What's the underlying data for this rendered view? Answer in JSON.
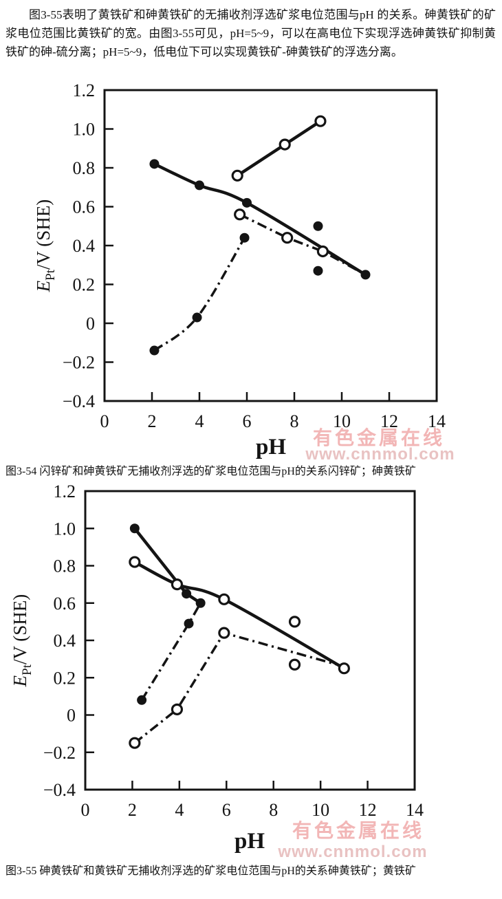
{
  "page": {
    "intro_paragraph": "图3-55表明了黄铁矿和砷黄铁矿的无捕收剂浮选矿浆电位范围与pH 的关系。砷黄铁矿的矿浆电位范围比黄铁矿的宽。由图3-55可见，pH=5~9，可以在高电位下实现浮选砷黄铁矿抑制黄铁矿的砷-硫分离；pH=5~9，低电位下可以实现黄铁矿-砷黄铁矿的浮选分离。"
  },
  "watermark": {
    "line1": "有色金属在线",
    "line2": "www.cnnmol.com",
    "color_line1": "#f2b6b6",
    "color_line2": "#e9c2c2"
  },
  "colors": {
    "ink": "#141414",
    "background": "#ffffff"
  },
  "chart_data": [
    {
      "id": "fig3-54",
      "type": "line",
      "caption": "图3-54 闪锌矿和砷黄铁矿无捕收剂浮选的矿浆电位范围与pH的关系闪锌矿；砷黄铁矿",
      "xlabel": "pH",
      "ylabel_var": "E",
      "ylabel_sub": "Pt",
      "ylabel_rest": "/V (SHE)",
      "xlim": [
        0,
        14
      ],
      "ylim": [
        -0.4,
        1.2
      ],
      "grid": false,
      "legend": "none",
      "x_ticks": [
        {
          "v": 0,
          "label": "0"
        },
        {
          "v": 2,
          "label": "2"
        },
        {
          "v": 4,
          "label": "4"
        },
        {
          "v": 6,
          "label": "6"
        },
        {
          "v": 8,
          "label": "8"
        },
        {
          "v": 10,
          "label": "10"
        },
        {
          "v": 12,
          "label": "12"
        },
        {
          "v": 14,
          "label": "14"
        }
      ],
      "y_ticks": [
        {
          "v": 1.2,
          "label": "1.2"
        },
        {
          "v": 1.0,
          "label": "1.0"
        },
        {
          "v": 0.8,
          "label": "0.8"
        },
        {
          "v": 0.6,
          "label": "0.6"
        },
        {
          "v": 0.4,
          "label": "0.4"
        },
        {
          "v": 0.2,
          "label": "0.2"
        },
        {
          "v": 0,
          "label": "0"
        },
        {
          "v": -0.2,
          "label": "−0.2"
        },
        {
          "v": -0.4,
          "label": "−0.4"
        }
      ],
      "series": [
        {
          "name": "砷黄铁矿上限(实心圆·实线)",
          "marker": "filled",
          "line": "solid",
          "smooth": true,
          "points": [
            [
              2.1,
              0.82
            ],
            [
              4.0,
              0.71
            ],
            [
              6.0,
              0.62
            ],
            [
              11.0,
              0.25
            ]
          ]
        },
        {
          "name": "闪锌矿上限(空心圆·实线)",
          "marker": "open",
          "line": "solid",
          "smooth": false,
          "points": [
            [
              5.6,
              0.76
            ],
            [
              7.6,
              0.92
            ],
            [
              9.1,
              1.04
            ]
          ]
        },
        {
          "name": "闪锌矿下限(空心圆·点划线)",
          "marker": "open",
          "line": "dashdot",
          "smooth": false,
          "points": [
            [
              5.7,
              0.56
            ],
            [
              7.7,
              0.44
            ],
            [
              9.2,
              0.37
            ],
            [
              11.0,
              0.25
            ]
          ],
          "marker_skip": [
            3
          ]
        },
        {
          "name": "砷黄铁矿下限(实心圆·点划线)",
          "marker": "filled",
          "line": "dashdot",
          "smooth": true,
          "points": [
            [
              2.1,
              -0.14
            ],
            [
              3.9,
              0.03
            ],
            [
              5.9,
              0.44
            ]
          ]
        },
        {
          "name": "实心圆散点",
          "marker": "filled",
          "line": "none",
          "smooth": false,
          "points": [
            [
              9.0,
              0.5
            ],
            [
              9.0,
              0.27
            ]
          ]
        }
      ]
    },
    {
      "id": "fig3-55",
      "type": "line",
      "caption": "图3-55 砷黄铁矿和黄铁矿无捕收剂浮选的矿浆电位范围与pH的关系砷黄铁矿；黄铁矿",
      "xlabel": "pH",
      "ylabel_var": "E",
      "ylabel_sub": "Pt",
      "ylabel_rest": "/V (SHE)",
      "xlim": [
        0,
        14
      ],
      "ylim": [
        -0.4,
        1.2
      ],
      "grid": false,
      "legend": "none",
      "x_ticks": [
        {
          "v": 0,
          "label": "0"
        },
        {
          "v": 2,
          "label": "2"
        },
        {
          "v": 4,
          "label": "4"
        },
        {
          "v": 6,
          "label": "6"
        },
        {
          "v": 8,
          "label": "8"
        },
        {
          "v": 10,
          "label": "10"
        },
        {
          "v": 12,
          "label": "12"
        },
        {
          "v": 14,
          "label": "14"
        }
      ],
      "y_ticks": [
        {
          "v": 1.2,
          "label": "1.2"
        },
        {
          "v": 1.0,
          "label": "1.0"
        },
        {
          "v": 0.8,
          "label": "0.8"
        },
        {
          "v": 0.6,
          "label": "0.6"
        },
        {
          "v": 0.4,
          "label": "0.4"
        },
        {
          "v": 0.2,
          "label": "0.2"
        },
        {
          "v": 0,
          "label": "0"
        },
        {
          "v": -0.2,
          "label": "−0.2"
        },
        {
          "v": -0.4,
          "label": "−0.4"
        }
      ],
      "series": [
        {
          "name": "黄铁矿上限(实心圆·实线)",
          "marker": "filled",
          "line": "solid",
          "smooth": false,
          "points": [
            [
              2.1,
              1.0
            ],
            [
              4.3,
              0.65
            ],
            [
              4.9,
              0.6
            ]
          ]
        },
        {
          "name": "黄铁矿下限(实心圆·点划线)",
          "marker": "filled",
          "line": "dashdot",
          "smooth": false,
          "points": [
            [
              2.4,
              0.08
            ],
            [
              4.4,
              0.49
            ],
            [
              4.9,
              0.6
            ]
          ],
          "marker_skip": [
            2
          ]
        },
        {
          "name": "砷黄铁矿上限(空心圆·实线)",
          "marker": "open",
          "line": "solid",
          "smooth": true,
          "points": [
            [
              2.1,
              0.82
            ],
            [
              3.9,
              0.7
            ],
            [
              5.9,
              0.62
            ],
            [
              11.0,
              0.25
            ]
          ]
        },
        {
          "name": "砷黄铁矿下限(空心圆·点划线)",
          "marker": "open",
          "line": "dashdot",
          "smooth": false,
          "points": [
            [
              2.1,
              -0.15
            ],
            [
              3.9,
              0.03
            ],
            [
              5.9,
              0.44
            ],
            [
              11.0,
              0.26
            ]
          ],
          "marker_skip": [
            3
          ]
        },
        {
          "name": "空心圆散点",
          "marker": "open",
          "line": "none",
          "smooth": false,
          "points": [
            [
              8.9,
              0.5
            ],
            [
              8.9,
              0.27
            ]
          ]
        }
      ]
    }
  ]
}
